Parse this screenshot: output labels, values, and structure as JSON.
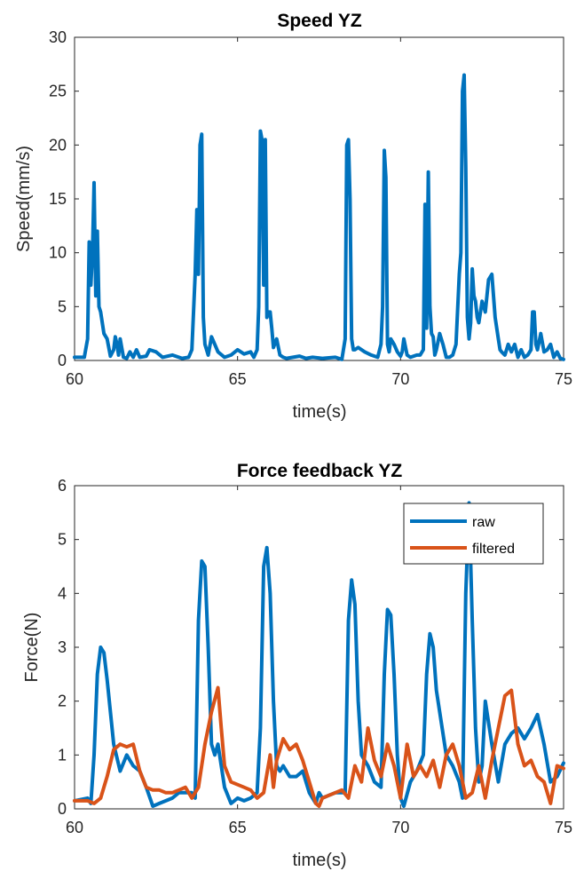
{
  "chart_data": [
    {
      "type": "line",
      "title": "Speed YZ",
      "xlabel": "time(s)",
      "ylabel": "Speed(mm/s)",
      "xlim": [
        60,
        75
      ],
      "ylim": [
        0,
        30
      ],
      "xticks": [
        60,
        65,
        70,
        75
      ],
      "yticks": [
        0,
        5,
        10,
        15,
        20,
        25,
        30
      ],
      "grid": false,
      "series": [
        {
          "color": "#0072BD",
          "x": [
            60.0,
            60.3,
            60.4,
            60.45,
            60.5,
            60.55,
            60.6,
            60.65,
            60.7,
            60.75,
            60.8,
            60.9,
            61.0,
            61.1,
            61.2,
            61.25,
            61.3,
            61.35,
            61.4,
            61.5,
            61.6,
            61.7,
            61.8,
            61.9,
            62.0,
            62.2,
            62.3,
            62.5,
            62.7,
            63.0,
            63.3,
            63.5,
            63.6,
            63.7,
            63.75,
            63.8,
            63.85,
            63.9,
            63.95,
            64.0,
            64.1,
            64.2,
            64.3,
            64.4,
            64.6,
            64.8,
            65.0,
            65.2,
            65.4,
            65.5,
            65.6,
            65.65,
            65.7,
            65.75,
            65.8,
            65.85,
            65.9,
            65.95,
            66.0,
            66.05,
            66.1,
            66.2,
            66.3,
            66.4,
            66.5,
            66.7,
            66.9,
            67.1,
            67.3,
            67.6,
            68.0,
            68.2,
            68.3,
            68.35,
            68.4,
            68.45,
            68.5,
            68.55,
            68.6,
            68.7,
            68.9,
            69.1,
            69.3,
            69.4,
            69.45,
            69.5,
            69.55,
            69.6,
            69.65,
            69.7,
            69.8,
            69.9,
            70.0,
            70.05,
            70.1,
            70.2,
            70.3,
            70.5,
            70.6,
            70.7,
            70.75,
            70.8,
            70.85,
            70.9,
            70.95,
            71.0,
            71.05,
            71.1,
            71.2,
            71.3,
            71.4,
            71.5,
            71.6,
            71.7,
            71.8,
            71.85,
            71.9,
            71.95,
            72.0,
            72.05,
            72.1,
            72.15,
            72.2,
            72.25,
            72.3,
            72.35,
            72.4,
            72.5,
            72.6,
            72.7,
            72.8,
            72.9,
            73.0,
            73.05,
            73.1,
            73.2,
            73.3,
            73.4,
            73.5,
            73.6,
            73.7,
            73.8,
            73.9,
            74.0,
            74.05,
            74.1,
            74.15,
            74.2,
            74.3,
            74.4,
            74.5,
            74.6,
            74.7,
            74.8,
            74.9,
            75.0
          ],
          "y": [
            0.3,
            0.3,
            2,
            11,
            7,
            10,
            16.5,
            6,
            12,
            5,
            4.5,
            2.5,
            2,
            0.4,
            1.0,
            2.2,
            1.5,
            0.5,
            2.0,
            0.3,
            0.2,
            0.8,
            0.3,
            1.0,
            0.3,
            0.4,
            1.0,
            0.8,
            0.3,
            0.5,
            0.2,
            0.3,
            1.0,
            8,
            14,
            8,
            20,
            21,
            4,
            1.5,
            0.5,
            2.2,
            1.5,
            0.8,
            0.3,
            0.5,
            1.0,
            0.6,
            0.8,
            0.3,
            1.0,
            5,
            21.3,
            20.5,
            7,
            20.5,
            4,
            4.5,
            4.5,
            3,
            1.2,
            2,
            0.5,
            0.3,
            0.2,
            0.3,
            0.4,
            0.2,
            0.3,
            0.2,
            0.3,
            0.1,
            2,
            20,
            20.5,
            15,
            2,
            1,
            1.0,
            1.2,
            0.8,
            0.5,
            0.3,
            1.5,
            5,
            19.5,
            17,
            1.5,
            0.8,
            2,
            1.5,
            0.8,
            0.4,
            0.8,
            2,
            0.5,
            0.3,
            0.5,
            0.5,
            1.0,
            14.5,
            3,
            17.5,
            5,
            2.5,
            2.2,
            0.5,
            1.0,
            2.5,
            1.5,
            0.3,
            0.3,
            0.5,
            1.5,
            8,
            10,
            25,
            26.5,
            18,
            4,
            2,
            3.5,
            8.5,
            6,
            5.5,
            4,
            3.5,
            5.5,
            4.5,
            7.5,
            8,
            4,
            2,
            1.0,
            0.8,
            0.5,
            1.5,
            0.8,
            1.5,
            0.3,
            1.0,
            0.3,
            0.5,
            1.0,
            4.5,
            4.5,
            1.5,
            1.0,
            2.5,
            0.8,
            1.0,
            1.5,
            0.3,
            0.8,
            0.2,
            0.1
          ]
        }
      ]
    },
    {
      "type": "line",
      "title": "Force feedback YZ",
      "xlabel": "time(s)",
      "ylabel": "Force(N)",
      "xlim": [
        60,
        75
      ],
      "ylim": [
        0,
        6
      ],
      "xticks": [
        60,
        65,
        70,
        75
      ],
      "yticks": [
        0,
        1,
        2,
        3,
        4,
        5,
        6
      ],
      "grid": false,
      "legend": "top-right",
      "series": [
        {
          "name": "raw",
          "color": "#0072BD",
          "x": [
            60.0,
            60.4,
            60.5,
            60.6,
            60.7,
            60.8,
            60.9,
            61.0,
            61.2,
            61.4,
            61.6,
            61.8,
            62.0,
            62.2,
            62.4,
            62.6,
            62.8,
            63.0,
            63.2,
            63.4,
            63.6,
            63.7,
            63.8,
            63.9,
            64.0,
            64.1,
            64.2,
            64.3,
            64.4,
            64.5,
            64.6,
            64.8,
            65.0,
            65.2,
            65.4,
            65.6,
            65.7,
            65.8,
            65.9,
            66.0,
            66.1,
            66.2,
            66.3,
            66.4,
            66.6,
            66.8,
            67.0,
            67.2,
            67.4,
            67.5,
            67.6,
            67.8,
            68.0,
            68.2,
            68.3,
            68.4,
            68.5,
            68.6,
            68.7,
            68.8,
            68.9,
            69.0,
            69.2,
            69.4,
            69.5,
            69.6,
            69.7,
            69.8,
            69.9,
            70.0,
            70.1,
            70.3,
            70.5,
            70.7,
            70.8,
            70.9,
            71.0,
            71.1,
            71.2,
            71.3,
            71.4,
            71.6,
            71.8,
            71.9,
            72.0,
            72.1,
            72.2,
            72.3,
            72.4,
            72.5,
            72.6,
            72.8,
            73.0,
            73.2,
            73.4,
            73.6,
            73.8,
            74.0,
            74.2,
            74.4,
            74.6,
            74.8,
            75.0
          ],
          "y": [
            0.15,
            0.2,
            0.1,
            1.0,
            2.5,
            3.0,
            2.9,
            2.4,
            1.2,
            0.7,
            1.0,
            0.8,
            0.7,
            0.4,
            0.05,
            0.1,
            0.15,
            0.2,
            0.3,
            0.3,
            0.3,
            0.2,
            3.5,
            4.6,
            4.5,
            3.0,
            1.2,
            1.0,
            1.2,
            0.8,
            0.4,
            0.1,
            0.2,
            0.15,
            0.2,
            0.3,
            1.5,
            4.5,
            4.85,
            4.0,
            2.0,
            0.8,
            0.7,
            0.8,
            0.6,
            0.6,
            0.7,
            0.3,
            0.1,
            0.3,
            0.2,
            0.25,
            0.3,
            0.3,
            0.3,
            3.5,
            4.25,
            3.8,
            2.0,
            1.0,
            0.9,
            0.8,
            0.5,
            0.4,
            2.5,
            3.7,
            3.6,
            2.5,
            1.0,
            0.2,
            0.05,
            0.5,
            0.7,
            1.0,
            2.5,
            3.25,
            3.0,
            2.2,
            1.8,
            1.4,
            1.0,
            0.8,
            0.5,
            0.2,
            4.0,
            5.68,
            3.5,
            1.5,
            0.5,
            0.8,
            2.0,
            1.2,
            0.5,
            1.2,
            1.4,
            1.5,
            1.3,
            1.5,
            1.75,
            1.2,
            0.5,
            0.6,
            0.85
          ]
        },
        {
          "name": "filtered",
          "color": "#D95319",
          "x": [
            60.0,
            60.4,
            60.6,
            60.8,
            61.0,
            61.2,
            61.4,
            61.6,
            61.8,
            62.0,
            62.2,
            62.4,
            62.6,
            62.8,
            63.0,
            63.2,
            63.4,
            63.6,
            63.8,
            64.0,
            64.2,
            64.4,
            64.5,
            64.6,
            64.8,
            65.0,
            65.2,
            65.4,
            65.6,
            65.8,
            66.0,
            66.1,
            66.2,
            66.4,
            66.6,
            66.8,
            67.0,
            67.2,
            67.4,
            67.5,
            67.6,
            67.8,
            68.0,
            68.2,
            68.4,
            68.6,
            68.8,
            69.0,
            69.2,
            69.4,
            69.6,
            69.8,
            70.0,
            70.2,
            70.4,
            70.6,
            70.8,
            71.0,
            71.2,
            71.4,
            71.6,
            71.8,
            72.0,
            72.2,
            72.4,
            72.6,
            72.8,
            73.0,
            73.2,
            73.4,
            73.6,
            73.8,
            74.0,
            74.2,
            74.4,
            74.6,
            74.8,
            75.0
          ],
          "y": [
            0.15,
            0.15,
            0.1,
            0.2,
            0.6,
            1.1,
            1.2,
            1.15,
            1.2,
            0.7,
            0.4,
            0.35,
            0.35,
            0.3,
            0.3,
            0.35,
            0.4,
            0.2,
            0.4,
            1.2,
            1.8,
            2.25,
            1.5,
            0.8,
            0.5,
            0.45,
            0.4,
            0.35,
            0.2,
            0.3,
            1.0,
            0.4,
            0.9,
            1.3,
            1.1,
            1.2,
            0.9,
            0.5,
            0.1,
            0.05,
            0.2,
            0.25,
            0.3,
            0.35,
            0.2,
            0.8,
            0.5,
            1.5,
            0.9,
            0.6,
            1.2,
            0.8,
            0.2,
            1.2,
            0.6,
            0.8,
            0.6,
            0.9,
            0.4,
            1.0,
            1.2,
            0.8,
            0.2,
            0.3,
            0.8,
            0.2,
            0.9,
            1.5,
            2.1,
            2.2,
            1.2,
            0.8,
            0.9,
            0.6,
            0.5,
            0.1,
            0.8,
            0.75
          ]
        }
      ]
    }
  ]
}
